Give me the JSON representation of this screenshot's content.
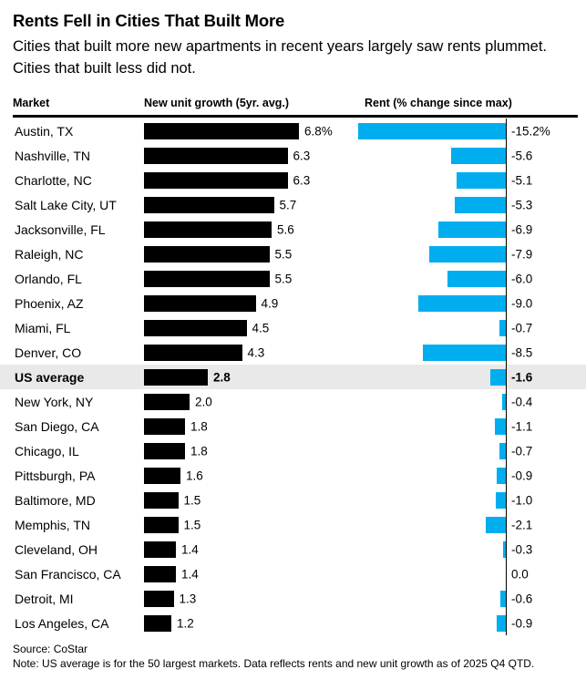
{
  "header": {
    "title": "Rents Fell in Cities That Built More",
    "subtitle": "Cities that built more new apartments in recent years largely saw rents plummet. Cities that built less did not."
  },
  "columns": {
    "market": "Market",
    "growth": "New unit growth (5yr. avg.)",
    "rent": "Rent (% change since max)"
  },
  "chart_data": {
    "type": "bar",
    "orientation": "horizontal",
    "title": "Rents Fell in Cities That Built More",
    "categories": [
      "Austin, TX",
      "Nashville, TN",
      "Charlotte, NC",
      "Salt Lake City, UT",
      "Jacksonville, FL",
      "Raleigh, NC",
      "Orlando, FL",
      "Phoenix, AZ",
      "Miami, FL",
      "Denver, CO",
      "US average",
      "New York, NY",
      "San Diego, CA",
      "Chicago, IL",
      "Pittsburgh, PA",
      "Baltimore, MD",
      "Memphis, TN",
      "Cleveland, OH",
      "San Francisco, CA",
      "Detroit, MI",
      "Los Angeles, CA"
    ],
    "series": [
      {
        "name": "New unit growth (5yr. avg.)",
        "unit": "%",
        "color": "#000000",
        "values": [
          6.8,
          6.3,
          6.3,
          5.7,
          5.6,
          5.5,
          5.5,
          4.9,
          4.5,
          4.3,
          2.8,
          2.0,
          1.8,
          1.8,
          1.6,
          1.5,
          1.5,
          1.4,
          1.4,
          1.3,
          1.2
        ],
        "labels": [
          "6.8%",
          "6.3",
          "6.3",
          "5.7",
          "5.6",
          "5.5",
          "5.5",
          "4.9",
          "4.5",
          "4.3",
          "2.8",
          "2.0",
          "1.8",
          "1.8",
          "1.6",
          "1.5",
          "1.5",
          "1.4",
          "1.4",
          "1.3",
          "1.2"
        ]
      },
      {
        "name": "Rent (% change since max)",
        "unit": "%",
        "color": "#00aeef",
        "values": [
          -15.2,
          -5.6,
          -5.1,
          -5.3,
          -6.9,
          -7.9,
          -6.0,
          -9.0,
          -0.7,
          -8.5,
          -1.6,
          -0.4,
          -1.1,
          -0.7,
          -0.9,
          -1.0,
          -2.1,
          -0.3,
          0.0,
          -0.6,
          -0.9
        ],
        "labels": [
          "-15.2%",
          "-5.6",
          "-5.1",
          "-5.3",
          "-6.9",
          "-7.9",
          "-6.0",
          "-9.0",
          "-0.7",
          "-8.5",
          "-1.6",
          "-0.4",
          "-1.1",
          "-0.7",
          "-0.9",
          "-1.0",
          "-2.1",
          "-0.3",
          "0.0",
          "-0.6",
          "-0.9"
        ]
      }
    ],
    "highlight_label": "US average",
    "highlight_index": 10,
    "grid": false,
    "legend_position": "column-headers",
    "axis": {
      "rent_zero_line": true
    }
  },
  "footer": {
    "source": "Source: CoStar",
    "note": "Note: US average is for the 50 largest markets. Data reflects rents and new unit growth as of 2025 Q4 QTD."
  },
  "colors": {
    "growth_bar": "#000000",
    "rent_bar": "#00aeef",
    "highlight_row_bg": "#e9e9e9",
    "text": "#000000",
    "rule": "#000000"
  }
}
